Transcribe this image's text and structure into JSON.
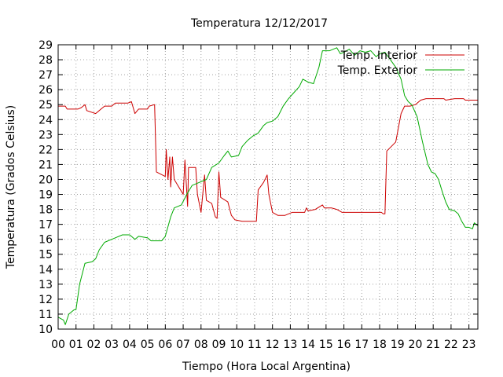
{
  "chart_data": {
    "type": "line",
    "title": "Temperatura 12/12/2017",
    "xlabel": "Tiempo (Hora Local Argentina)",
    "ylabel": "Temperatura (Grados Celsius)",
    "xlim": [
      0,
      23.5
    ],
    "ylim": [
      10,
      29
    ],
    "x_ticks": [
      "00",
      "01",
      "02",
      "03",
      "04",
      "05",
      "06",
      "07",
      "08",
      "09",
      "10",
      "11",
      "12",
      "13",
      "14",
      "15",
      "16",
      "17",
      "18",
      "19",
      "20",
      "21",
      "22",
      "23"
    ],
    "y_ticks": [
      10,
      11,
      12,
      13,
      14,
      15,
      16,
      17,
      18,
      19,
      20,
      21,
      22,
      23,
      24,
      25,
      26,
      27,
      28,
      29
    ],
    "grid": true,
    "legend_position": "top-right",
    "series": [
      {
        "name": "Temp. Interior",
        "color": "#cc0000",
        "points": [
          [
            0,
            24.9
          ],
          [
            0.4,
            24.9
          ],
          [
            0.5,
            24.7
          ],
          [
            1,
            24.7
          ],
          [
            1.1,
            24.7
          ],
          [
            1.3,
            24.8
          ],
          [
            1.4,
            24.9
          ],
          [
            1.5,
            25.0
          ],
          [
            1.6,
            24.6
          ],
          [
            2.1,
            24.4
          ],
          [
            2.4,
            24.7
          ],
          [
            2.6,
            24.9
          ],
          [
            3.0,
            24.9
          ],
          [
            3.2,
            25.1
          ],
          [
            3.9,
            25.1
          ],
          [
            4.1,
            25.2
          ],
          [
            4.3,
            24.4
          ],
          [
            4.5,
            24.7
          ],
          [
            5.0,
            24.7
          ],
          [
            5.1,
            24.9
          ],
          [
            5.4,
            25.0
          ],
          [
            5.5,
            20.5
          ],
          [
            6.0,
            20.2
          ],
          [
            6.05,
            22.0
          ],
          [
            6.15,
            20.0
          ],
          [
            6.25,
            21.5
          ],
          [
            6.3,
            19.5
          ],
          [
            6.4,
            21.5
          ],
          [
            6.5,
            20.0
          ],
          [
            7.0,
            19.0
          ],
          [
            7.1,
            21.3
          ],
          [
            7.25,
            18.2
          ],
          [
            7.3,
            20.8
          ],
          [
            7.7,
            20.8
          ],
          [
            7.8,
            19.0
          ],
          [
            8.0,
            17.8
          ],
          [
            8.2,
            20.3
          ],
          [
            8.3,
            18.6
          ],
          [
            8.6,
            18.4
          ],
          [
            8.8,
            17.5
          ],
          [
            8.9,
            17.4
          ],
          [
            9.0,
            20.5
          ],
          [
            9.1,
            18.8
          ],
          [
            9.5,
            18.5
          ],
          [
            9.7,
            17.6
          ],
          [
            9.9,
            17.3
          ],
          [
            10.3,
            17.2
          ],
          [
            11.1,
            17.2
          ],
          [
            11.2,
            19.3
          ],
          [
            11.5,
            19.8
          ],
          [
            11.7,
            20.3
          ],
          [
            11.8,
            19.0
          ],
          [
            12.0,
            17.8
          ],
          [
            12.3,
            17.6
          ],
          [
            12.7,
            17.6
          ],
          [
            13.1,
            17.8
          ],
          [
            13.8,
            17.8
          ],
          [
            13.9,
            18.1
          ],
          [
            14.0,
            17.9
          ],
          [
            14.4,
            18.0
          ],
          [
            14.8,
            18.3
          ],
          [
            14.9,
            18.1
          ],
          [
            15.3,
            18.1
          ],
          [
            15.6,
            18.0
          ],
          [
            15.9,
            17.8
          ],
          [
            18.1,
            17.8
          ],
          [
            18.2,
            17.7
          ],
          [
            18.3,
            17.7
          ],
          [
            18.4,
            21.9
          ],
          [
            18.9,
            22.5
          ],
          [
            19.2,
            24.4
          ],
          [
            19.4,
            24.9
          ],
          [
            19.7,
            24.9
          ],
          [
            20.0,
            25.0
          ],
          [
            20.3,
            25.3
          ],
          [
            20.6,
            25.4
          ],
          [
            21.6,
            25.4
          ],
          [
            21.7,
            25.3
          ],
          [
            22.2,
            25.4
          ],
          [
            22.7,
            25.4
          ],
          [
            22.8,
            25.3
          ],
          [
            23.5,
            25.3
          ]
        ]
      },
      {
        "name": "Temp. Exterior",
        "color": "#00aa00",
        "points": [
          [
            0,
            10.8
          ],
          [
            0.3,
            10.6
          ],
          [
            0.4,
            10.3
          ],
          [
            0.6,
            11.0
          ],
          [
            0.9,
            11.3
          ],
          [
            1.0,
            11.3
          ],
          [
            1.2,
            13.0
          ],
          [
            1.5,
            14.4
          ],
          [
            1.9,
            14.5
          ],
          [
            2.1,
            14.7
          ],
          [
            2.3,
            15.3
          ],
          [
            2.6,
            15.8
          ],
          [
            3.0,
            16.0
          ],
          [
            3.2,
            16.1
          ],
          [
            3.6,
            16.3
          ],
          [
            4.0,
            16.3
          ],
          [
            4.1,
            16.2
          ],
          [
            4.3,
            16.0
          ],
          [
            4.5,
            16.2
          ],
          [
            5.0,
            16.1
          ],
          [
            5.2,
            15.9
          ],
          [
            5.8,
            15.9
          ],
          [
            6.0,
            16.2
          ],
          [
            6.3,
            17.5
          ],
          [
            6.5,
            18.1
          ],
          [
            6.9,
            18.3
          ],
          [
            7.2,
            19.0
          ],
          [
            7.5,
            19.6
          ],
          [
            7.9,
            19.8
          ],
          [
            8.3,
            20.0
          ],
          [
            8.6,
            20.8
          ],
          [
            9.0,
            21.1
          ],
          [
            9.3,
            21.6
          ],
          [
            9.5,
            21.9
          ],
          [
            9.7,
            21.5
          ],
          [
            10.1,
            21.6
          ],
          [
            10.3,
            22.2
          ],
          [
            10.6,
            22.6
          ],
          [
            10.9,
            22.9
          ],
          [
            11.2,
            23.1
          ],
          [
            11.5,
            23.6
          ],
          [
            11.7,
            23.8
          ],
          [
            12.0,
            23.9
          ],
          [
            12.3,
            24.2
          ],
          [
            12.6,
            24.9
          ],
          [
            12.9,
            25.4
          ],
          [
            13.2,
            25.8
          ],
          [
            13.5,
            26.2
          ],
          [
            13.7,
            26.7
          ],
          [
            14.0,
            26.5
          ],
          [
            14.3,
            26.4
          ],
          [
            14.6,
            27.5
          ],
          [
            14.8,
            28.6
          ],
          [
            15.2,
            28.6
          ],
          [
            15.4,
            28.7
          ],
          [
            15.6,
            28.8
          ],
          [
            15.8,
            28.4
          ],
          [
            16.0,
            28.5
          ],
          [
            16.3,
            28.7
          ],
          [
            16.6,
            28.3
          ],
          [
            16.9,
            28.6
          ],
          [
            17.2,
            28.5
          ],
          [
            17.5,
            28.6
          ],
          [
            17.8,
            28.2
          ],
          [
            18.0,
            28.4
          ],
          [
            18.3,
            28.5
          ],
          [
            18.6,
            28.0
          ],
          [
            18.9,
            27.5
          ],
          [
            19.2,
            26.7
          ],
          [
            19.4,
            25.6
          ],
          [
            19.6,
            25.2
          ],
          [
            19.8,
            25.0
          ],
          [
            20.1,
            24.2
          ],
          [
            20.4,
            22.5
          ],
          [
            20.7,
            21.0
          ],
          [
            20.9,
            20.5
          ],
          [
            21.1,
            20.4
          ],
          [
            21.3,
            20.0
          ],
          [
            21.5,
            19.2
          ],
          [
            21.7,
            18.5
          ],
          [
            21.9,
            18.0
          ],
          [
            22.2,
            17.9
          ],
          [
            22.4,
            17.7
          ],
          [
            22.6,
            17.2
          ],
          [
            22.8,
            16.8
          ],
          [
            23.0,
            16.8
          ],
          [
            23.2,
            16.7
          ],
          [
            23.3,
            17.1
          ],
          [
            23.5,
            16.9
          ]
        ]
      }
    ]
  }
}
